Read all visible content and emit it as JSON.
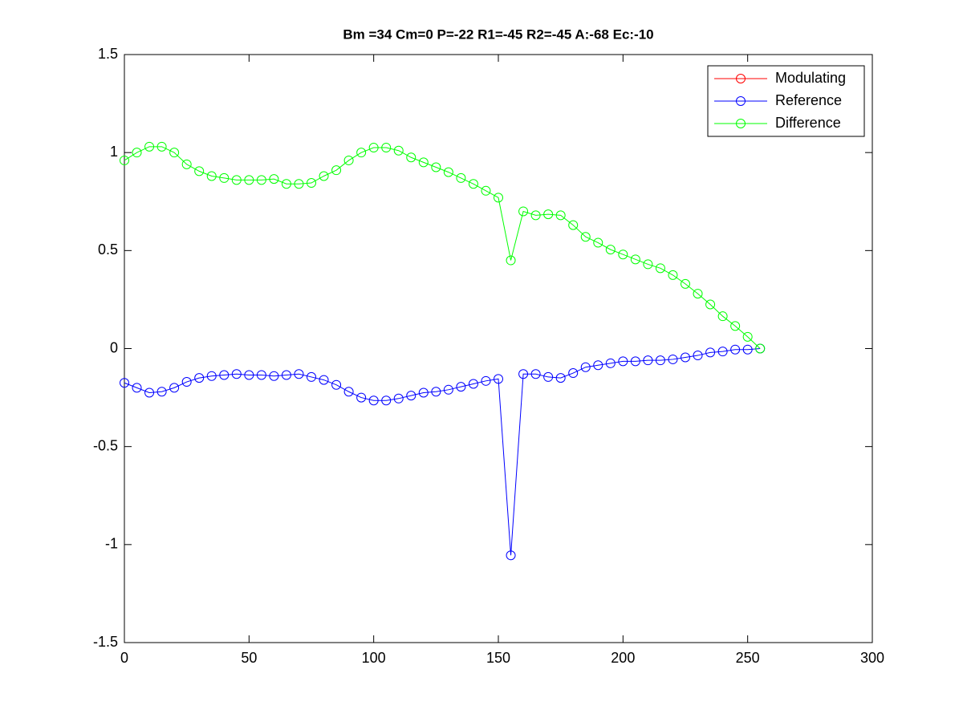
{
  "chart_data": {
    "type": "line",
    "title": "Bm =34  Cm=0  P=-22  R1=-45  R2=-45  A:-68  Ec:-10",
    "x": [
      0,
      5,
      10,
      15,
      20,
      25,
      30,
      35,
      40,
      45,
      50,
      55,
      60,
      65,
      70,
      75,
      80,
      85,
      90,
      95,
      100,
      105,
      110,
      115,
      120,
      125,
      130,
      135,
      140,
      145,
      150,
      155,
      160,
      165,
      170,
      175,
      180,
      185,
      190,
      195,
      200,
      205,
      210,
      215,
      220,
      225,
      230,
      235,
      240,
      245,
      250,
      255
    ],
    "series": [
      {
        "name": "Modulating",
        "color": "#ff0000",
        "values": [
          null,
          null,
          null,
          null,
          null,
          null,
          null,
          null,
          null,
          null,
          null,
          null,
          null,
          null,
          null,
          null,
          null,
          null,
          null,
          null,
          null,
          null,
          null,
          null,
          null,
          null,
          null,
          null,
          null,
          null,
          null,
          null,
          null,
          null,
          null,
          null,
          null,
          null,
          null,
          null,
          null,
          null,
          null,
          null,
          null,
          null,
          null,
          null,
          null,
          null,
          null,
          null
        ]
      },
      {
        "name": "Reference",
        "color": "#0000ff",
        "values": [
          -0.175,
          -0.2,
          -0.225,
          -0.22,
          -0.2,
          -0.17,
          -0.15,
          -0.14,
          -0.135,
          -0.13,
          -0.135,
          -0.135,
          -0.14,
          -0.135,
          -0.13,
          -0.145,
          -0.16,
          -0.185,
          -0.22,
          -0.25,
          -0.265,
          -0.265,
          -0.255,
          -0.24,
          -0.225,
          -0.22,
          -0.21,
          -0.195,
          -0.18,
          -0.165,
          -0.155,
          -1.055,
          -0.13,
          -0.13,
          -0.145,
          -0.15,
          -0.125,
          -0.095,
          -0.085,
          -0.075,
          -0.065,
          -0.065,
          -0.06,
          -0.06,
          -0.055,
          -0.045,
          -0.035,
          -0.02,
          -0.015,
          -0.005,
          -0.005,
          0
        ]
      },
      {
        "name": "Difference",
        "color": "#00ff00",
        "values": [
          0.96,
          1.0,
          1.03,
          1.03,
          1.0,
          0.94,
          0.905,
          0.88,
          0.87,
          0.86,
          0.86,
          0.86,
          0.865,
          0.84,
          0.84,
          0.845,
          0.88,
          0.91,
          0.96,
          1.0,
          1.025,
          1.025,
          1.01,
          0.975,
          0.95,
          0.925,
          0.9,
          0.87,
          0.84,
          0.805,
          0.77,
          0.45,
          0.7,
          0.68,
          0.685,
          0.68,
          0.63,
          0.57,
          0.54,
          0.505,
          0.48,
          0.455,
          0.43,
          0.41,
          0.375,
          0.33,
          0.28,
          0.225,
          0.165,
          0.115,
          0.06,
          0
        ]
      }
    ],
    "xlim": [
      0,
      300
    ],
    "xticks": [
      0,
      50,
      100,
      150,
      200,
      250,
      300
    ],
    "ylim": [
      -1.5,
      1.5
    ],
    "yticks": [
      -1.5,
      -1,
      -0.5,
      0,
      0.5,
      1,
      1.5
    ],
    "grid": false,
    "legend": "northeast",
    "marker": "circle"
  }
}
